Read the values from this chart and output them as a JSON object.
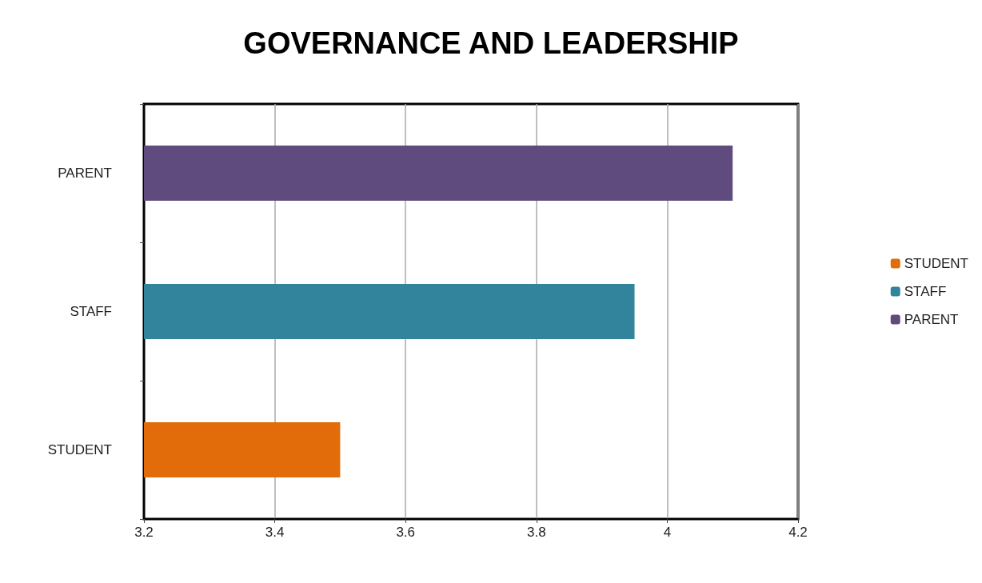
{
  "chart_data": {
    "type": "bar",
    "title": "GOVERNANCE AND LEADERSHIP",
    "orientation": "horizontal",
    "categories": [
      "PARENT",
      "STAFF",
      "STUDENT"
    ],
    "series": [
      {
        "name": "STUDENT",
        "color": "#e36c0a",
        "values": [
          null,
          null,
          3.5
        ]
      },
      {
        "name": "STAFF",
        "color": "#31849b",
        "values": [
          null,
          3.95,
          null
        ]
      },
      {
        "name": "PARENT",
        "color": "#5f4b7d",
        "values": [
          4.1,
          null,
          null
        ]
      }
    ],
    "xlim": [
      3.2,
      4.2
    ],
    "xticks": [
      3.2,
      3.4,
      3.6,
      3.8,
      4,
      4.2
    ],
    "grid": "x",
    "legend": "right"
  }
}
